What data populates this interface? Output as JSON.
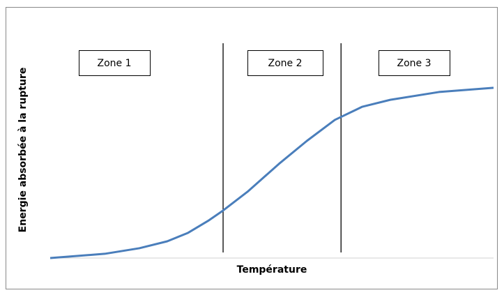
{
  "chart_data": {
    "type": "line",
    "x_label": "Température",
    "y_label": "Energie absorbée à la rupture",
    "x": [
      0,
      12.3,
      20.1,
      26.4,
      31.1,
      35.8,
      39,
      44.5,
      51.6,
      57.9,
      64.2,
      70.4,
      76.7,
      87.7,
      100
    ],
    "series": [
      {
        "color": "#4a7ebb",
        "values": [
          0,
          1.9,
          4.4,
          7.5,
          11.3,
          16.9,
          21.3,
          29.7,
          42.2,
          52.5,
          61.9,
          67.8,
          70.9,
          74.4,
          76.3
        ]
      }
    ],
    "xlim": [
      0,
      100
    ],
    "ylim": [
      0,
      100
    ],
    "dividers": [
      39,
      65.6
    ],
    "zones": [
      "Zone 1",
      "Zone 2",
      "Zone 3"
    ]
  }
}
